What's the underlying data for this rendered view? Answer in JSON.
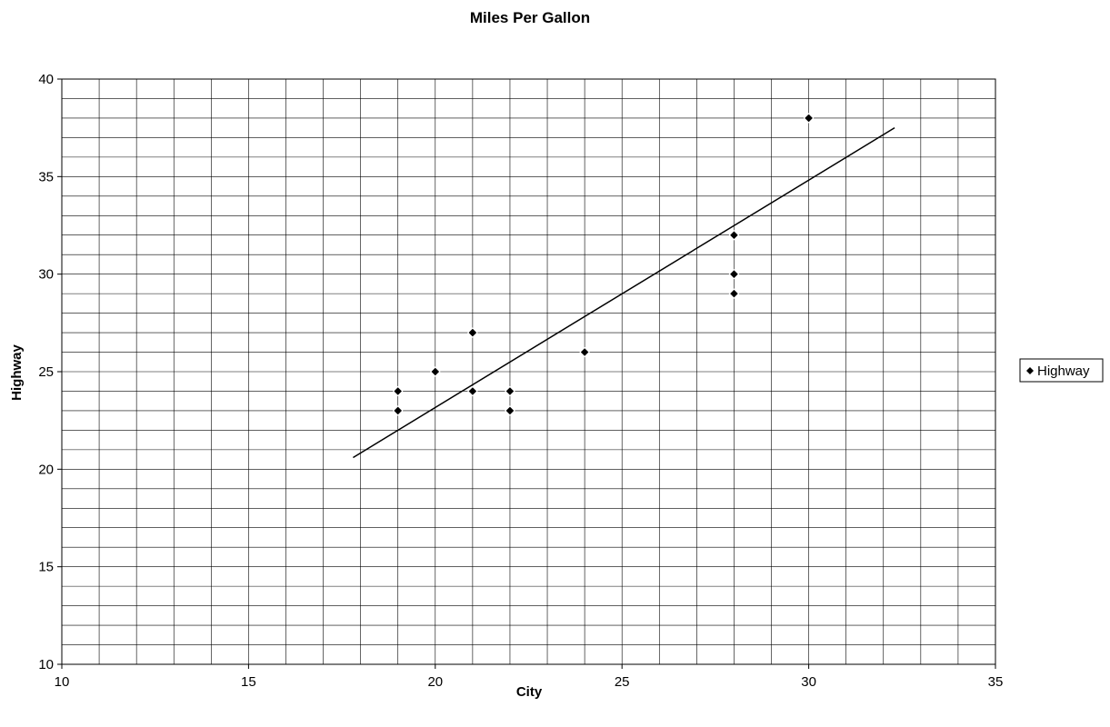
{
  "chart_data": {
    "type": "scatter",
    "title": "Miles Per Gallon",
    "xlabel": "City",
    "ylabel": "Highway",
    "xlim": [
      10,
      35
    ],
    "ylim": [
      10,
      40
    ],
    "xticks": [
      10,
      15,
      20,
      25,
      30,
      35
    ],
    "yticks": [
      10,
      15,
      20,
      25,
      30,
      35,
      40
    ],
    "x_minor_step": 1,
    "y_minor_step": 1,
    "grid": true,
    "legend_position": "right",
    "series": [
      {
        "name": "Highway",
        "marker": "diamond",
        "color": "#000000",
        "points": [
          {
            "x": 19,
            "y": 23
          },
          {
            "x": 19,
            "y": 24
          },
          {
            "x": 20,
            "y": 25
          },
          {
            "x": 21,
            "y": 24
          },
          {
            "x": 21,
            "y": 27
          },
          {
            "x": 22,
            "y": 23
          },
          {
            "x": 22,
            "y": 24
          },
          {
            "x": 24,
            "y": 26
          },
          {
            "x": 28,
            "y": 29
          },
          {
            "x": 28,
            "y": 30
          },
          {
            "x": 28,
            "y": 32
          },
          {
            "x": 30,
            "y": 38
          }
        ]
      }
    ],
    "trendline": {
      "type": "linear",
      "color": "#000000",
      "x_start": 17.8,
      "y_start": 20.6,
      "x_end": 32.3,
      "y_end": 37.5
    }
  }
}
